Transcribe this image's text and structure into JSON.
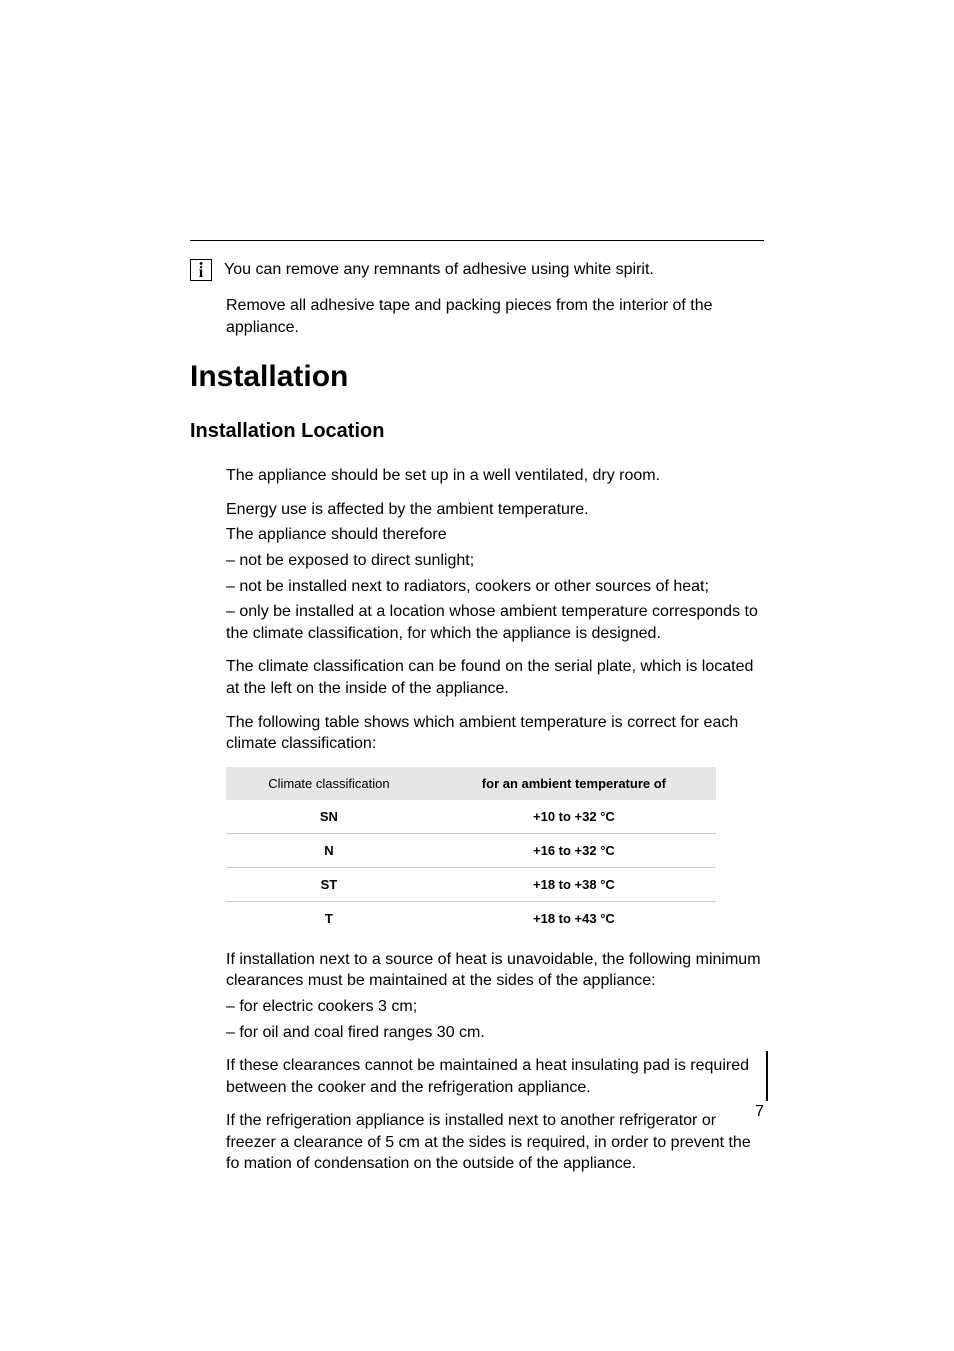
{
  "info_tip": "You can remove any remnants of adhesive using white spirit.",
  "info_body": "Remove all adhesive tape and packing pieces from the interior of the appliance.",
  "section_title": "Installation",
  "subsection_title": "Installation Location",
  "p1": "The appliance should be set up in a well ventilated, dry room.",
  "p2a": "Energy use is affected by the ambient temperature.",
  "p2b": "The appliance should therefore",
  "p2c": "– not be exposed to direct sunlight;",
  "p2d": "– not be installed next to radiators, cookers or other sources of heat;",
  "p2e": "– only be installed at a location whose ambient temperature corresponds to the climate classification, for which the appliance is designed.",
  "p3": "The climate classification can be found on the serial plate, which is located at the left on the inside of the appliance.",
  "p4": "The following table shows which ambient temperature is correct for each climate classification:",
  "table": {
    "type": "table",
    "header_bg": "#e6e6e6",
    "border_color": "#cccccc",
    "columns": [
      "Climate classification",
      "for an ambient temperature of"
    ],
    "rows": [
      [
        "SN",
        "+10 to +32 °C"
      ],
      [
        "N",
        "+16 to +32 °C"
      ],
      [
        "ST",
        "+18 to +38 °C"
      ],
      [
        "T",
        "+18 to +43 °C"
      ]
    ],
    "header_fontsize": 13,
    "cell_fontsize": 13,
    "cell_fontweight": "bold"
  },
  "p5": "If installation next to a source of heat is unavoidable, the following minimum clearances must be maintained at the sides of the appliance:",
  "p5a": "– for electric cookers 3 cm;",
  "p5b": "– for oil and coal fired ranges 30 cm.",
  "p6": "If these clearances cannot be maintained a heat insulating pad is required between the cooker and the refrigeration appliance.",
  "p7": "If the refrigeration appliance is installed next to another refrigerator or freezer a clearance of 5 cm at the sides is required, in order to prevent the fo mation of condensation on the outside of the appliance.",
  "page_number": "7",
  "colors": {
    "text": "#000000",
    "background": "#ffffff",
    "table_header_bg": "#e6e6e6",
    "table_border": "#cccccc"
  },
  "typography": {
    "body_fontsize": 16,
    "section_title_fontsize": 30,
    "subsection_title_fontsize": 20,
    "font_family": "Helvetica Neue, Arial, sans-serif"
  }
}
